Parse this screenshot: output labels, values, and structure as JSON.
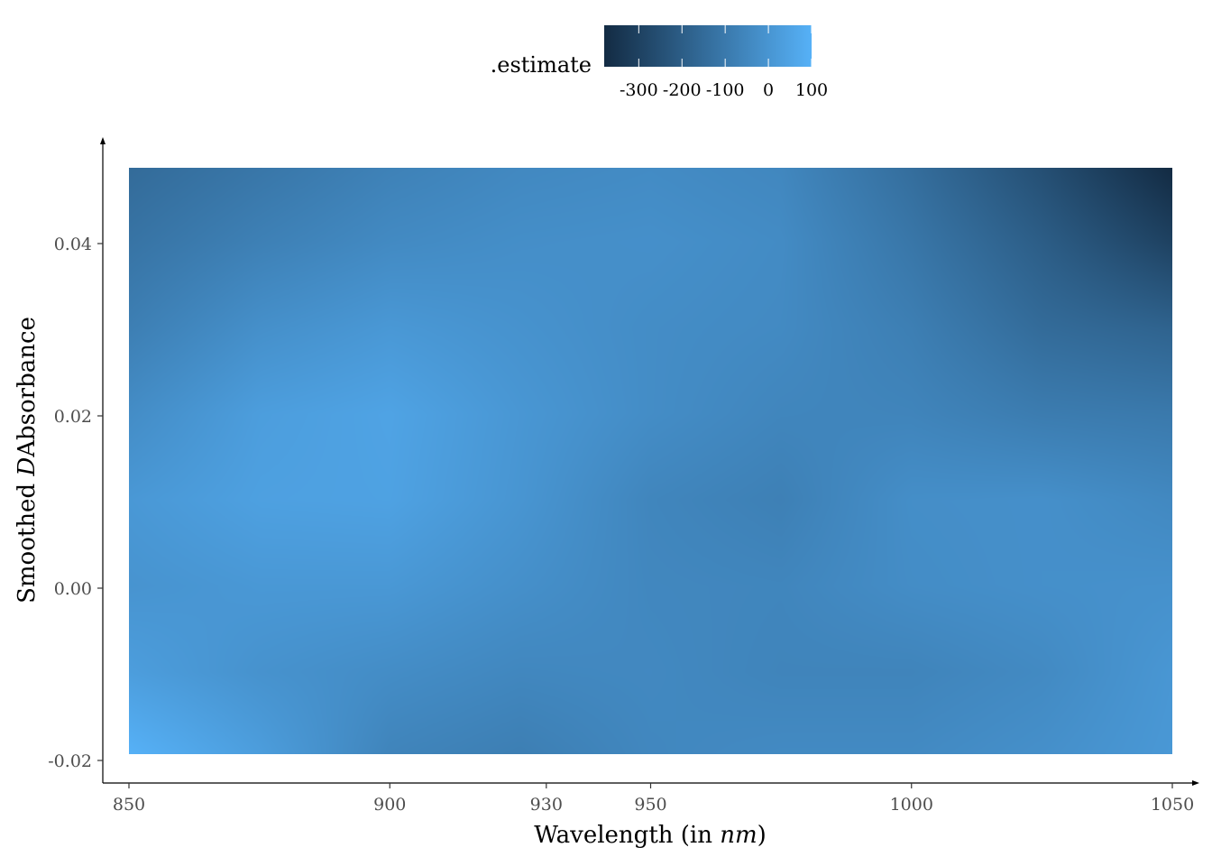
{
  "chart_data": {
    "type": "heatmap",
    "xlabel_prefix": "Wavelength (in ",
    "xlabel_var": "nm",
    "xlabel_suffix": ")",
    "ylabel_prefix": "Smoothed ",
    "ylabel_var": "D",
    "ylabel_suffix": "Absorbance",
    "xlim": [
      850,
      1050
    ],
    "ylim": [
      -0.0225,
      0.0495
    ],
    "x_ticks": [
      850,
      900,
      930,
      950,
      1000,
      1050
    ],
    "x_tick_labels": [
      "850",
      "900",
      "930",
      "950",
      "1000",
      "1050"
    ],
    "y_ticks": [
      -0.02,
      0.0,
      0.02,
      0.04
    ],
    "y_tick_labels": [
      "-0.02",
      "0.00",
      "0.02",
      "0.04"
    ],
    "x": [
      850,
      875,
      900,
      925,
      950,
      975,
      1000,
      1025,
      1050
    ],
    "y": [
      0.0485,
      0.04,
      0.03,
      0.02,
      0.01,
      0.0,
      -0.01,
      -0.0195
    ],
    "z": [
      [
        -150,
        -110,
        -70,
        -45,
        -35,
        -50,
        -140,
        -250,
        -380
      ],
      [
        -120,
        -75,
        -40,
        -25,
        -20,
        -35,
        -110,
        -200,
        -300
      ],
      [
        -80,
        -20,
        10,
        -10,
        -30,
        -40,
        -80,
        -150,
        -180
      ],
      [
        -30,
        30,
        50,
        5,
        -30,
        -55,
        -60,
        -90,
        -100
      ],
      [
        10,
        40,
        45,
        0,
        -55,
        -75,
        -25,
        -20,
        -45
      ],
      [
        -5,
        10,
        10,
        -20,
        -50,
        -55,
        -30,
        -20,
        -15
      ],
      [
        30,
        -10,
        -30,
        -50,
        -45,
        -60,
        -60,
        -40,
        5
      ],
      [
        100,
        30,
        -60,
        -80,
        -50,
        -40,
        -40,
        -20,
        10
      ]
    ],
    "fill_scale": {
      "low_color": "#132b43",
      "high_color": "#56b1f7",
      "min": -380,
      "max": 100
    },
    "legend": {
      "title": ".estimate",
      "position": "top",
      "breaks": [
        -300,
        -200,
        -100,
        0,
        100
      ],
      "labels": [
        "-300",
        "-200",
        "-100",
        "0",
        "100"
      ]
    },
    "grid": false
  }
}
